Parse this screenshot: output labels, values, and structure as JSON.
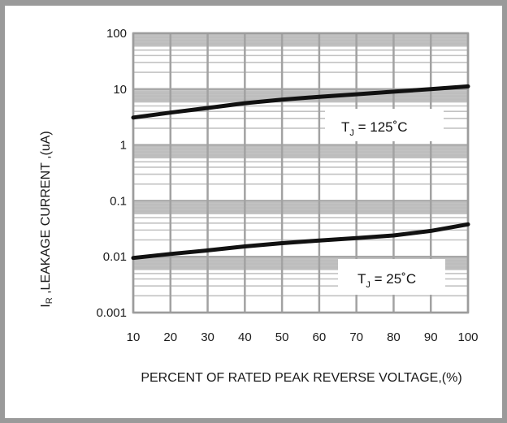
{
  "chart_data": {
    "type": "line",
    "title": "",
    "xlabel": "PERCENT OF RATED PEAK REVERSE VOLTAGE,(%)",
    "ylabel": "I_R ,LEAKAGE CURRENT ,(uA)",
    "ylabel_main": "I",
    "ylabel_sub": "R",
    "ylabel_rest": " ,LEAKAGE  CURRENT ,(uA)",
    "x_ticks": [
      "10",
      "20",
      "30",
      "40",
      "50",
      "60",
      "70",
      "80",
      "90",
      "100"
    ],
    "y_ticks": [
      "0.001",
      "0.01",
      "0.1",
      "1",
      "10",
      "100"
    ],
    "xlim": [
      10,
      100
    ],
    "ylim": [
      0.001,
      100
    ],
    "y_scale": "log",
    "grid": true,
    "series": [
      {
        "name": "T_J = 125°C",
        "x": [
          10,
          20,
          30,
          40,
          50,
          60,
          70,
          80,
          90,
          100
        ],
        "y": [
          3.1,
          3.8,
          4.6,
          5.6,
          6.5,
          7.3,
          8.1,
          9.0,
          10.0,
          11.2
        ]
      },
      {
        "name": "T_J = 25°C",
        "x": [
          10,
          20,
          30,
          40,
          50,
          60,
          70,
          80,
          90,
          100
        ],
        "y": [
          0.0095,
          0.0112,
          0.013,
          0.0153,
          0.0175,
          0.0195,
          0.0215,
          0.024,
          0.029,
          0.038
        ]
      }
    ],
    "annotations": [
      {
        "main": "T",
        "sub": "J",
        "rest": " = 125˚C"
      },
      {
        "main": "T",
        "sub": "J",
        "rest": " = 25˚C"
      }
    ]
  }
}
